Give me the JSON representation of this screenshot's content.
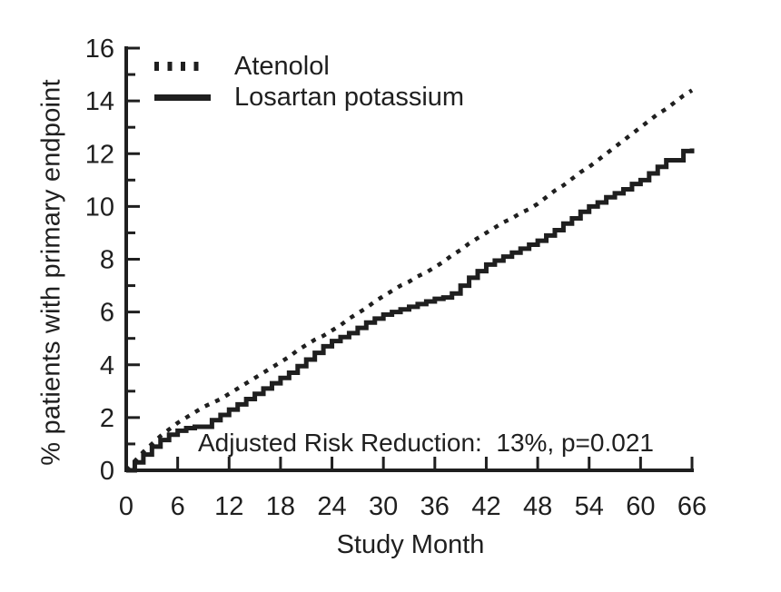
{
  "figure": {
    "background": "#ffffff",
    "ink_color": "#1f1f1f"
  },
  "legend": {
    "items": [
      {
        "label": "Atenolol",
        "line_style": "dotted"
      },
      {
        "label": "Losartan potassium",
        "line_style": "solid"
      }
    ]
  },
  "annotation": {
    "text": "Adjusted Risk Reduction:  13%, p=0.021"
  },
  "chart_data": {
    "type": "line",
    "title": "",
    "xlabel": "Study Month",
    "ylabel": "% patients with primary endpoint",
    "xlim": [
      0,
      66
    ],
    "ylim": [
      0,
      16
    ],
    "x_ticks": [
      0,
      6,
      12,
      18,
      24,
      30,
      36,
      42,
      48,
      54,
      60,
      66
    ],
    "y_ticks_major": [
      0,
      2,
      4,
      6,
      8,
      10,
      12,
      14,
      16
    ],
    "y_ticks_minor": [
      1,
      3,
      5,
      7,
      9,
      11,
      13,
      15
    ],
    "grid": false,
    "legend_position": "top-left-inside",
    "x": [
      0,
      1,
      2,
      3,
      4,
      5,
      6,
      7,
      8,
      9,
      10,
      11,
      12,
      13,
      14,
      15,
      16,
      17,
      18,
      19,
      20,
      21,
      22,
      23,
      24,
      25,
      26,
      27,
      28,
      29,
      30,
      31,
      32,
      33,
      34,
      35,
      36,
      37,
      38,
      39,
      40,
      41,
      42,
      43,
      44,
      45,
      46,
      47,
      48,
      49,
      50,
      51,
      52,
      53,
      54,
      55,
      56,
      57,
      58,
      59,
      60,
      61,
      62,
      63,
      64,
      65,
      66
    ],
    "series": [
      {
        "name": "Atenolol",
        "style": "dotted",
        "step": false,
        "values": [
          0,
          0.35,
          0.7,
          1.0,
          1.3,
          1.55,
          1.8,
          2.0,
          2.2,
          2.4,
          2.55,
          2.7,
          2.9,
          3.1,
          3.3,
          3.5,
          3.7,
          3.9,
          4.1,
          4.3,
          4.55,
          4.75,
          4.95,
          5.1,
          5.3,
          5.5,
          5.75,
          5.95,
          6.15,
          6.4,
          6.6,
          6.8,
          7.0,
          7.15,
          7.35,
          7.5,
          7.7,
          7.9,
          8.15,
          8.35,
          8.6,
          8.8,
          9.0,
          9.2,
          9.4,
          9.55,
          9.75,
          9.9,
          10.1,
          10.35,
          10.6,
          10.8,
          11.05,
          11.3,
          11.5,
          11.75,
          12.0,
          12.25,
          12.5,
          12.75,
          13.0,
          13.25,
          13.5,
          13.7,
          13.95,
          14.2,
          14.4
        ]
      },
      {
        "name": "Losartan potassium",
        "style": "solid",
        "step": true,
        "values": [
          0,
          0.3,
          0.6,
          0.9,
          1.15,
          1.35,
          1.5,
          1.6,
          1.65,
          1.65,
          1.9,
          2.1,
          2.3,
          2.5,
          2.7,
          2.9,
          3.1,
          3.3,
          3.5,
          3.7,
          3.95,
          4.2,
          4.45,
          4.7,
          4.9,
          5.05,
          5.2,
          5.4,
          5.6,
          5.75,
          5.9,
          6.0,
          6.1,
          6.2,
          6.3,
          6.4,
          6.5,
          6.55,
          6.7,
          7.0,
          7.3,
          7.55,
          7.8,
          7.95,
          8.1,
          8.25,
          8.4,
          8.55,
          8.7,
          8.9,
          9.1,
          9.35,
          9.55,
          9.8,
          10.0,
          10.15,
          10.35,
          10.5,
          10.65,
          10.85,
          11.0,
          11.25,
          11.5,
          11.75,
          11.75,
          12.1,
          12.2
        ]
      }
    ]
  }
}
